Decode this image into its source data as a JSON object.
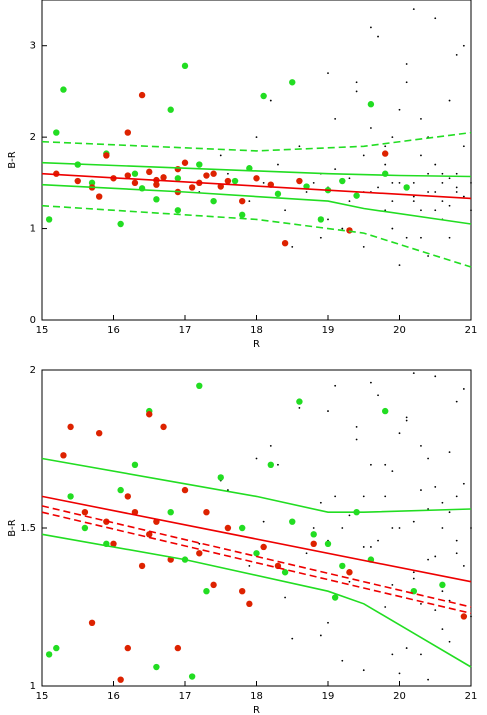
{
  "chart_data": [
    {
      "type": "scatter",
      "xlabel": "R",
      "ylabel": "B-R",
      "xlim": [
        15,
        21
      ],
      "ylim": [
        0,
        3.5
      ],
      "xticks": [
        15,
        16,
        17,
        18,
        19,
        20,
        21
      ],
      "yticks": [
        0,
        1,
        2,
        3
      ],
      "series": [
        {
          "marker": "dot",
          "color": "#000000",
          "x": [
            17.2,
            17.6,
            17.9,
            18.1,
            18.3,
            18.4,
            18.6,
            18.7,
            18.9,
            19.0,
            19.1,
            19.2,
            19.3,
            19.4,
            19.5,
            19.6,
            19.7,
            19.8,
            19.9,
            20.0,
            20.1,
            20.2,
            20.3,
            20.4,
            20.5,
            20.6,
            20.7,
            20.8,
            20.9,
            21.0,
            19.2,
            19.5,
            19.8,
            20.0,
            20.2,
            20.4,
            20.6,
            20.8,
            19.0,
            19.3,
            19.6,
            19.9,
            20.1,
            20.3,
            20.5,
            20.7,
            20.9,
            18.8,
            19.4,
            20.6,
            17.5,
            18.0,
            18.5,
            19.0,
            19.5,
            20.0,
            20.5,
            21.0,
            20.3,
            19.7,
            20.2,
            20.4,
            20.6,
            20.8,
            19.9,
            20.1,
            20.5,
            20.7,
            20.9,
            19.8,
            18.2,
            18.9,
            19.6,
            20.3,
            20.8,
            19.1,
            19.9,
            20.4,
            20.7,
            20.2
          ],
          "values": [
            1.4,
            1.6,
            1.3,
            1.5,
            1.7,
            1.2,
            1.9,
            1.4,
            1.6,
            1.1,
            2.2,
            1.5,
            1.3,
            2.6,
            1.8,
            1.4,
            3.1,
            1.2,
            2.0,
            1.5,
            2.8,
            1.3,
            0.9,
            1.6,
            3.3,
            1.1,
            2.4,
            1.4,
            1.9,
            1.2,
            1.0,
            0.8,
            1.7,
            2.3,
            1.35,
            0.7,
            1.5,
            2.9,
            1.45,
            1.55,
            2.1,
            1.3,
            0.9,
            1.8,
            1.4,
            1.25,
            3.0,
            1.5,
            2.5,
            1.6,
            1.8,
            2.0,
            0.8,
            2.7,
            1.4,
            0.6,
            1.2,
            1.5,
            2.2,
            1.45,
            1.5,
            1.4,
            1.3,
            1.6,
            1.0,
            2.6,
            1.7,
            0.9,
            1.35,
            1.9,
            2.4,
            0.9,
            3.2,
            1.2,
            1.45,
            1.65,
            1.5,
            2.0,
            1.55,
            3.4
          ]
        },
        {
          "marker": "circle",
          "color": "#22dd22",
          "x": [
            15.1,
            15.2,
            15.3,
            15.5,
            15.7,
            15.9,
            16.1,
            16.3,
            16.4,
            16.6,
            16.8,
            16.9,
            17.0,
            17.2,
            17.4,
            17.7,
            17.9,
            18.1,
            18.3,
            18.5,
            18.7,
            18.9,
            19.0,
            19.2,
            19.4,
            19.6,
            19.8,
            20.1,
            16.9,
            17.8
          ],
          "values": [
            1.1,
            2.05,
            2.52,
            1.7,
            1.5,
            1.82,
            1.05,
            1.6,
            1.44,
            1.32,
            2.3,
            1.55,
            2.78,
            1.7,
            1.3,
            1.52,
            1.66,
            2.45,
            1.38,
            2.6,
            1.46,
            1.1,
            1.42,
            1.52,
            1.36,
            2.36,
            1.6,
            1.45,
            1.2,
            1.15
          ]
        },
        {
          "marker": "circle",
          "color": "#dd2200",
          "x": [
            15.2,
            15.5,
            15.7,
            15.9,
            16.0,
            16.2,
            16.3,
            16.5,
            16.6,
            16.7,
            16.9,
            17.0,
            17.2,
            17.3,
            17.5,
            17.6,
            17.8,
            18.0,
            18.2,
            18.4,
            16.2,
            16.6,
            16.9,
            17.1,
            15.8,
            16.4,
            17.4,
            18.6,
            19.3,
            19.8
          ],
          "values": [
            1.6,
            1.52,
            1.45,
            1.8,
            1.55,
            2.05,
            1.5,
            1.62,
            1.48,
            1.56,
            1.4,
            1.72,
            1.5,
            1.58,
            1.46,
            1.52,
            1.3,
            1.55,
            1.48,
            0.84,
            1.58,
            1.53,
            1.65,
            1.45,
            1.35,
            2.46,
            1.6,
            1.52,
            0.98,
            1.82
          ]
        },
        {
          "marker": "line",
          "dash": false,
          "color": "#ee0000",
          "x": [
            15,
            21
          ],
          "values": [
            1.6,
            1.33
          ]
        },
        {
          "marker": "line",
          "dash": false,
          "color": "#22dd22",
          "x": [
            15,
            17,
            19,
            20,
            21
          ],
          "values": [
            1.72,
            1.66,
            1.6,
            1.58,
            1.57
          ]
        },
        {
          "marker": "line",
          "dash": false,
          "color": "#22dd22",
          "x": [
            15,
            17,
            19,
            19.5,
            21
          ],
          "values": [
            1.48,
            1.4,
            1.3,
            1.22,
            1.05
          ]
        },
        {
          "marker": "line",
          "dash": true,
          "color": "#22dd22",
          "x": [
            15,
            18,
            19.5,
            21
          ],
          "values": [
            1.95,
            1.85,
            1.9,
            2.05
          ]
        },
        {
          "marker": "line",
          "dash": true,
          "color": "#22dd22",
          "x": [
            15,
            18,
            19.5,
            21
          ],
          "values": [
            1.25,
            1.1,
            0.95,
            0.58
          ]
        }
      ]
    },
    {
      "type": "scatter",
      "xlabel": "R",
      "ylabel": "B-R",
      "xlim": [
        15,
        21
      ],
      "ylim": [
        1,
        2
      ],
      "xticks": [
        15,
        16,
        17,
        18,
        19,
        20,
        21
      ],
      "yticks": [
        1,
        1.5,
        2
      ],
      "series": [
        {
          "marker": "dot",
          "color": "#000000",
          "x": [
            17.2,
            17.6,
            17.9,
            18.1,
            18.3,
            18.4,
            18.6,
            18.7,
            18.9,
            19.0,
            19.1,
            19.2,
            19.3,
            19.4,
            19.5,
            19.6,
            19.7,
            19.8,
            19.9,
            20.0,
            20.1,
            20.2,
            20.3,
            20.4,
            20.5,
            20.6,
            20.7,
            20.8,
            20.9,
            21.0,
            19.2,
            19.5,
            19.8,
            20.0,
            20.2,
            20.4,
            20.6,
            20.8,
            19.0,
            19.3,
            19.6,
            19.9,
            20.1,
            20.3,
            20.5,
            20.7,
            20.9,
            18.8,
            19.4,
            20.6,
            17.5,
            18.0,
            18.5,
            19.0,
            19.5,
            20.0,
            20.5,
            21.0,
            20.3,
            19.7,
            20.2,
            20.4,
            20.6,
            20.8,
            19.9,
            20.1,
            20.5,
            20.7,
            20.9,
            19.8,
            18.2,
            18.9,
            19.6,
            20.3,
            20.8,
            19.1,
            19.9,
            20.4,
            20.7,
            20.2
          ],
          "values": [
            1.45,
            1.62,
            1.38,
            1.52,
            1.7,
            1.28,
            1.88,
            1.42,
            1.58,
            1.2,
            1.95,
            1.5,
            1.33,
            1.78,
            1.6,
            1.44,
            1.92,
            1.25,
            1.68,
            1.5,
            1.85,
            1.34,
            1.1,
            1.56,
            1.98,
            1.18,
            1.74,
            1.42,
            1.64,
            1.22,
            1.08,
            1.05,
            1.6,
            1.8,
            1.36,
            1.02,
            1.5,
            1.9,
            1.46,
            1.54,
            1.7,
            1.32,
            1.12,
            1.62,
            1.41,
            1.27,
            1.94,
            1.5,
            1.82,
            1.58,
            1.65,
            1.72,
            1.15,
            1.87,
            1.44,
            1.04,
            1.24,
            1.5,
            1.76,
            1.46,
            1.52,
            1.4,
            1.3,
            1.6,
            1.1,
            1.84,
            1.63,
            1.14,
            1.38,
            1.7,
            1.76,
            1.16,
            1.96,
            1.26,
            1.46,
            1.6,
            1.5,
            1.72,
            1.55,
            1.99
          ]
        },
        {
          "marker": "circle",
          "color": "#22dd22",
          "x": [
            15.1,
            15.2,
            15.4,
            15.6,
            15.9,
            16.1,
            16.3,
            16.5,
            16.8,
            17.0,
            17.2,
            17.3,
            17.5,
            17.8,
            18.0,
            18.2,
            18.4,
            18.6,
            18.8,
            19.0,
            19.2,
            19.4,
            19.6,
            19.8,
            20.2,
            16.6,
            17.1,
            18.5,
            19.1,
            20.6
          ],
          "values": [
            1.1,
            1.12,
            1.6,
            1.5,
            1.45,
            1.62,
            1.7,
            1.87,
            1.55,
            1.4,
            1.95,
            1.3,
            1.66,
            1.5,
            1.42,
            1.7,
            1.36,
            1.9,
            1.48,
            1.45,
            1.38,
            1.55,
            1.4,
            1.87,
            1.3,
            1.06,
            1.03,
            1.52,
            1.28,
            1.32
          ]
        },
        {
          "marker": "circle",
          "color": "#dd2200",
          "x": [
            15.3,
            15.4,
            15.6,
            15.8,
            15.9,
            16.0,
            16.2,
            16.3,
            16.4,
            16.5,
            16.6,
            16.7,
            16.8,
            17.0,
            17.2,
            17.4,
            17.6,
            17.9,
            18.1,
            18.3,
            16.1,
            16.5,
            16.9,
            17.3,
            15.7,
            16.2,
            17.8,
            18.8,
            19.3,
            20.9
          ],
          "values": [
            1.73,
            1.82,
            1.55,
            1.8,
            1.52,
            1.45,
            1.6,
            1.55,
            1.38,
            1.48,
            1.52,
            1.82,
            1.4,
            1.62,
            1.42,
            1.32,
            1.5,
            1.26,
            1.44,
            1.38,
            1.02,
            1.86,
            1.12,
            1.55,
            1.2,
            1.12,
            1.3,
            1.45,
            1.36,
            1.22
          ]
        },
        {
          "marker": "line",
          "dash": false,
          "color": "#ee0000",
          "x": [
            15,
            21
          ],
          "values": [
            1.6,
            1.33
          ]
        },
        {
          "marker": "line",
          "dash": true,
          "color": "#ee0000",
          "x": [
            15,
            21
          ],
          "values": [
            1.57,
            1.25
          ]
        },
        {
          "marker": "line",
          "dash": true,
          "color": "#ee0000",
          "x": [
            15,
            21
          ],
          "values": [
            1.55,
            1.23
          ]
        },
        {
          "marker": "line",
          "dash": false,
          "color": "#22dd22",
          "x": [
            15,
            17,
            18,
            19,
            19.5,
            21
          ],
          "values": [
            1.72,
            1.64,
            1.6,
            1.55,
            1.55,
            1.56
          ]
        },
        {
          "marker": "line",
          "dash": false,
          "color": "#22dd22",
          "x": [
            15,
            17,
            19,
            19.5,
            21
          ],
          "values": [
            1.48,
            1.4,
            1.3,
            1.26,
            1.06
          ]
        }
      ]
    }
  ]
}
